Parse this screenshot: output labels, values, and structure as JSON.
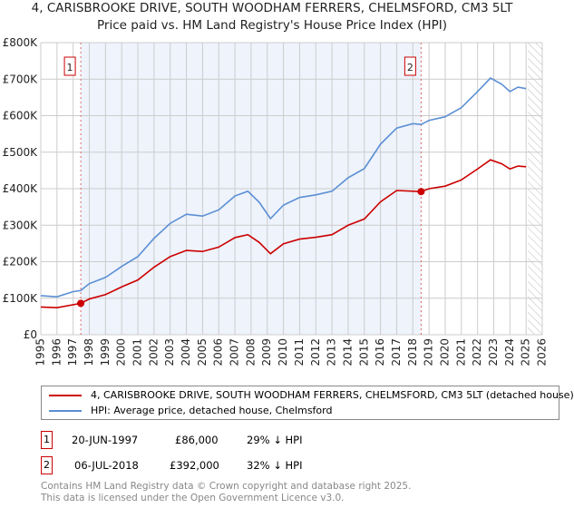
{
  "chart_data": {
    "type": "line",
    "title": "4, CARISBROOKE DRIVE, SOUTH WOODHAM FERRERS, CHELMSFORD, CM3 5LT",
    "subtitle": "Price paid vs. HM Land Registry's House Price Index (HPI)",
    "xlim": [
      1995,
      2026
    ],
    "ylim": [
      0,
      800000
    ],
    "x_ticks": [
      "1995",
      "1996",
      "1997",
      "1998",
      "1999",
      "2000",
      "2001",
      "2002",
      "2003",
      "2004",
      "2005",
      "2006",
      "2007",
      "2008",
      "2009",
      "2010",
      "2011",
      "2012",
      "2013",
      "2014",
      "2015",
      "2016",
      "2017",
      "2018",
      "2019",
      "2020",
      "2021",
      "2022",
      "2023",
      "2024",
      "2025",
      "2026"
    ],
    "y_ticks": [
      {
        "v": 0,
        "label": "£0"
      },
      {
        "v": 100000,
        "label": "£100K"
      },
      {
        "v": 200000,
        "label": "£200K"
      },
      {
        "v": 300000,
        "label": "£300K"
      },
      {
        "v": 400000,
        "label": "£400K"
      },
      {
        "v": 500000,
        "label": "£500K"
      },
      {
        "v": 600000,
        "label": "£600K"
      },
      {
        "v": 700000,
        "label": "£700K"
      },
      {
        "v": 800000,
        "label": "£800K"
      }
    ],
    "series": [
      {
        "name": "4, CARISBROOKE DRIVE, SOUTH WOODHAM FERRERS, CHELMSFORD, CM3 5LT (detached house)",
        "color": "#cc0000",
        "x": [
          1995,
          1996,
          1997.47,
          1998,
          1999,
          2000,
          2001,
          2002,
          2003,
          2004,
          2005,
          2006,
          2007,
          2007.8,
          2008.5,
          2009.2,
          2010,
          2011,
          2012,
          2013,
          2014,
          2015,
          2016,
          2017,
          2018.51,
          2019,
          2020,
          2021,
          2022,
          2022.8,
          2023.5,
          2024,
          2024.5,
          2025
        ],
        "y": [
          76000,
          74000,
          86000,
          98000,
          110000,
          131000,
          150000,
          185000,
          214000,
          231000,
          228000,
          240000,
          266000,
          274000,
          253000,
          222000,
          249000,
          262000,
          267000,
          274000,
          300000,
          317000,
          364000,
          395000,
          392000,
          400000,
          407000,
          424000,
          454000,
          479000,
          468000,
          454000,
          462000,
          460000
        ]
      },
      {
        "name": "HPI: Average price, detached house, Chelmsford",
        "color": "#5b8fd4",
        "x": [
          1995,
          1996,
          1997,
          1997.47,
          1998,
          1999,
          2000,
          2001,
          2002,
          2003,
          2004,
          2005,
          2006,
          2007,
          2007.8,
          2008.5,
          2009.2,
          2010,
          2011,
          2012,
          2013,
          2014,
          2015,
          2016,
          2017,
          2018,
          2018.51,
          2019,
          2020,
          2021,
          2022,
          2022.8,
          2023.5,
          2024,
          2024.5,
          2025
        ],
        "y": [
          107000,
          104000,
          118000,
          121000,
          140000,
          157000,
          187000,
          214000,
          264000,
          305000,
          330000,
          325000,
          342000,
          380000,
          393000,
          363000,
          318000,
          355000,
          376000,
          383000,
          393000,
          430000,
          455000,
          522000,
          566000,
          578000,
          576000,
          587000,
          597000,
          622000,
          666000,
          703000,
          686000,
          666000,
          678000,
          674000
        ]
      }
    ],
    "sales": [
      {
        "label": "1",
        "x": 1997.47,
        "price": 86000,
        "date": "20-JUN-1997",
        "price_text": "£86,000",
        "hpi_text": "29% ↓ HPI"
      },
      {
        "label": "2",
        "x": 2018.51,
        "price": 392000,
        "date": "06-JUL-2018",
        "price_text": "£392,000",
        "hpi_text": "32% ↓ HPI"
      }
    ],
    "forecast_start": 2025.1,
    "legend_placement": "bottom"
  },
  "footer": {
    "line1": "Contains HM Land Registry data © Crown copyright and database right 2025.",
    "line2": "This data is licensed under the Open Government Licence v3.0."
  }
}
